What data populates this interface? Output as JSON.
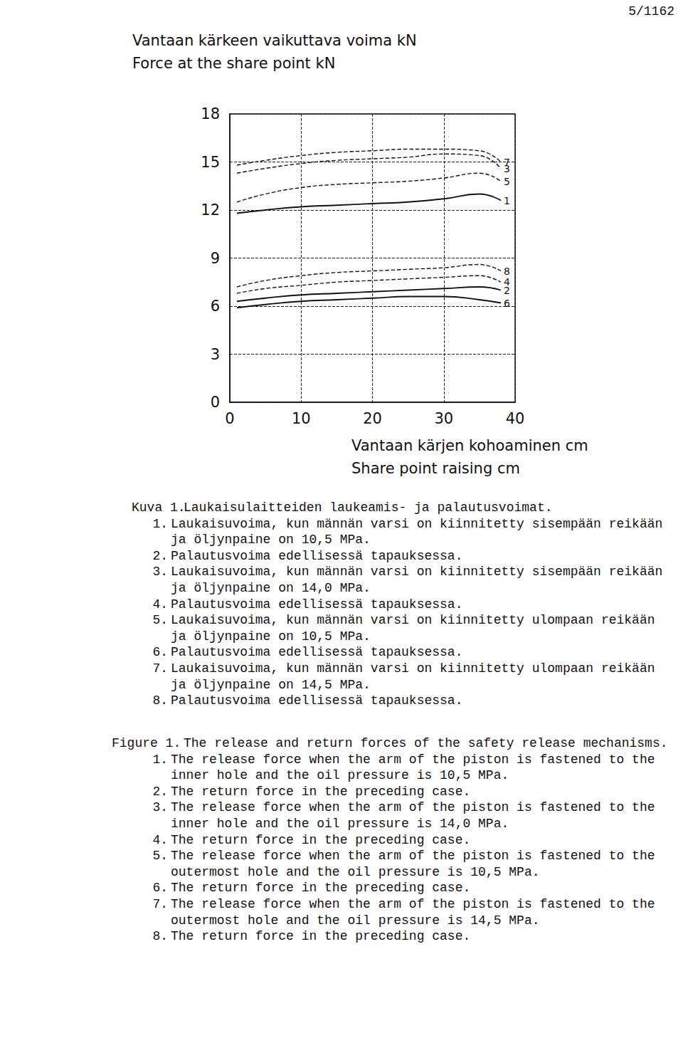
{
  "page_number": "5/1162",
  "chart_data": {
    "type": "line",
    "ylabel": [
      "Vantaan kärkeen vaikuttava voima kN",
      "Force at the share point kN"
    ],
    "xlabel": [
      "Vantaan kärjen kohoaminen cm",
      "Share point raising cm"
    ],
    "xlim": [
      0,
      40
    ],
    "xticks": [
      0,
      10,
      20,
      30,
      40
    ],
    "ylim": [
      0,
      18
    ],
    "yticks": [
      0,
      3,
      6,
      9,
      12,
      15,
      18
    ],
    "grid": true,
    "x": [
      1,
      5,
      10,
      15,
      20,
      25,
      30,
      35,
      38
    ],
    "series": [
      {
        "name": "1",
        "color": "#111111",
        "line_style": "solid",
        "values": [
          11.8,
          12.0,
          12.2,
          12.3,
          12.4,
          12.5,
          12.7,
          13.0,
          12.6
        ]
      },
      {
        "name": "2",
        "color": "#111111",
        "line_style": "solid",
        "values": [
          6.3,
          6.5,
          6.7,
          6.8,
          6.9,
          7.0,
          7.1,
          7.2,
          7.0
        ]
      },
      {
        "name": "3",
        "color": "#111111",
        "line_style": "dashed",
        "values": [
          14.3,
          14.6,
          14.9,
          15.1,
          15.2,
          15.3,
          15.5,
          15.4,
          14.6
        ]
      },
      {
        "name": "4",
        "color": "#111111",
        "line_style": "dashed",
        "values": [
          6.8,
          7.1,
          7.3,
          7.5,
          7.6,
          7.7,
          7.8,
          7.9,
          7.5
        ]
      },
      {
        "name": "5",
        "color": "#111111",
        "line_style": "dashed",
        "values": [
          12.5,
          13.0,
          13.4,
          13.6,
          13.7,
          13.8,
          14.0,
          14.3,
          13.8
        ]
      },
      {
        "name": "6",
        "color": "#111111",
        "line_style": "solid",
        "values": [
          5.9,
          6.1,
          6.3,
          6.4,
          6.5,
          6.6,
          6.6,
          6.4,
          6.2
        ]
      },
      {
        "name": "7",
        "color": "#111111",
        "line_style": "dashed",
        "values": [
          14.8,
          15.1,
          15.4,
          15.6,
          15.7,
          15.8,
          15.8,
          15.7,
          15.0
        ]
      },
      {
        "name": "8",
        "color": "#111111",
        "line_style": "dashed",
        "values": [
          7.2,
          7.6,
          7.9,
          8.1,
          8.2,
          8.3,
          8.4,
          8.6,
          8.2
        ]
      }
    ]
  },
  "caption_fi": {
    "label": "Kuva 1.",
    "title": "Laukaisulaitteiden laukeamis- ja palautusvoimat.",
    "items": [
      {
        "number": "1.",
        "lines": [
          "Laukaisuvoima, kun männän varsi on kiinnitetty sisempään reikään",
          "ja öljynpaine on 10,5 MPa."
        ]
      },
      {
        "number": "2.",
        "lines": [
          "Palautusvoima edellisessä tapauksessa."
        ]
      },
      {
        "number": "3.",
        "lines": [
          "Laukaisuvoima, kun männän varsi on kiinnitetty sisempään reikään",
          "ja öljynpaine on 14,0 MPa."
        ]
      },
      {
        "number": "4.",
        "lines": [
          "Palautusvoima edellisessä tapauksessa."
        ]
      },
      {
        "number": "5.",
        "lines": [
          "Laukaisuvoima, kun männän varsi on kiinnitetty ulompaan reikään",
          "ja öljynpaine on 10,5 MPa."
        ]
      },
      {
        "number": "6.",
        "lines": [
          "Palautusvoima edellisessä tapauksessa."
        ]
      },
      {
        "number": "7.",
        "lines": [
          "Laukaisuvoima, kun männän varsi on kiinnitetty ulompaan reikään",
          "ja öljynpaine on 14,5 MPa."
        ]
      },
      {
        "number": "8.",
        "lines": [
          "Palautusvoima edellisessä tapauksessa."
        ]
      }
    ]
  },
  "caption_en": {
    "label": "Figure 1.",
    "title": "The release and return forces of the safety release mechanisms.",
    "items": [
      {
        "number": "1.",
        "lines": [
          "The release force when the arm of the piston is fastened to the",
          "inner hole and the oil pressure is 10,5 MPa."
        ]
      },
      {
        "number": "2.",
        "lines": [
          "The return force in the preceding case."
        ]
      },
      {
        "number": "3.",
        "lines": [
          "The release force when the arm of the piston is fastened to the",
          "inner hole and the oil pressure is 14,0 MPa."
        ]
      },
      {
        "number": "4.",
        "lines": [
          "The return force in the preceding case."
        ]
      },
      {
        "number": "5.",
        "lines": [
          "The release force when the arm of the piston is fastened to the",
          "outermost hole and the oil pressure is 10,5 MPa."
        ]
      },
      {
        "number": "6.",
        "lines": [
          "The return force in the preceding case."
        ]
      },
      {
        "number": "7.",
        "lines": [
          "The release force when the arm of the piston is fastened to the",
          "outermost hole and the oil pressure is 14,5 MPa."
        ]
      },
      {
        "number": "8.",
        "lines": [
          "The return force in the preceding case."
        ]
      }
    ]
  }
}
